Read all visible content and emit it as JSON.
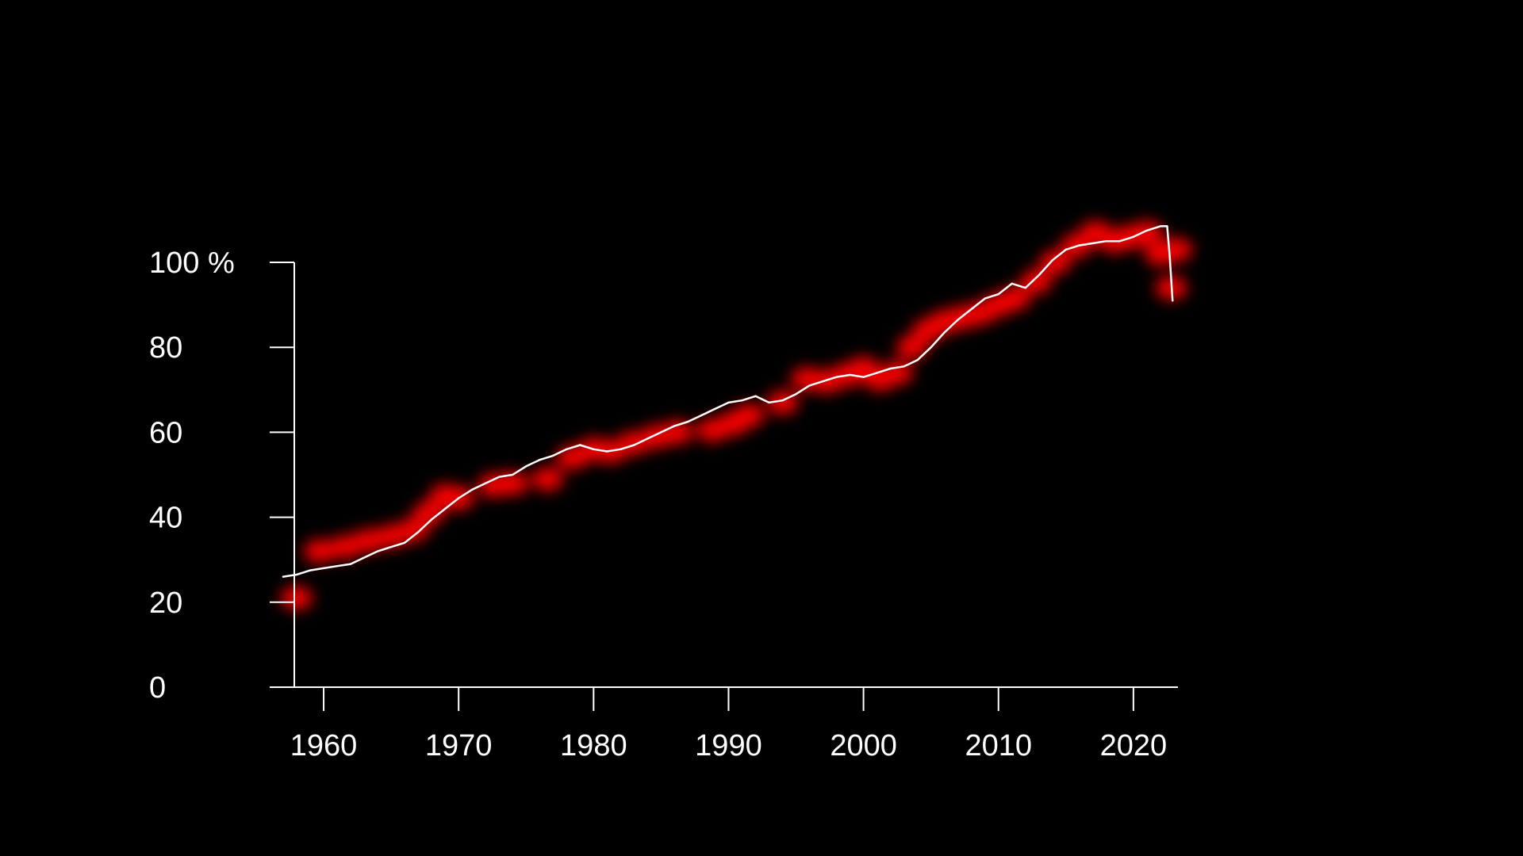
{
  "chart_data": {
    "type": "line",
    "title": "",
    "xlabel": "",
    "ylabel": "",
    "y_unit": "%",
    "xlim": [
      1956,
      2023.3
    ],
    "ylim": [
      0,
      100
    ],
    "x_ticks": [
      1960,
      1970,
      1980,
      1990,
      2000,
      2010,
      2020
    ],
    "y_ticks": [
      0,
      20,
      40,
      60,
      80,
      100
    ],
    "y_tick_labels": [
      "0",
      "20",
      "40",
      "60",
      "80",
      "100 %"
    ],
    "grid": false,
    "legend": "none",
    "colors": {
      "background": "#000000",
      "line": "#ffffff",
      "glow": "#ff0000",
      "axis": "#ffffff",
      "text": "#ffffff"
    },
    "series": [
      {
        "line": {
          "x": [
            1957.0,
            1958.0,
            1959.0,
            1960.0,
            1961.0,
            1962.0,
            1963.0,
            1964.0,
            1965.0,
            1966.0,
            1967.0,
            1968.0,
            1969.0,
            1970.0,
            1971.0,
            1972.0,
            1973.0,
            1974.0,
            1975.0,
            1976.0,
            1977.0,
            1978.0,
            1979.0,
            1980.0,
            1981.0,
            1982.0,
            1983.0,
            1984.0,
            1985.0,
            1986.0,
            1987.0,
            1988.0,
            1989.0,
            1990.0,
            1991.0,
            1992.0,
            1993.0,
            1994.0,
            1995.0,
            1996.0,
            1997.0,
            1998.0,
            1999.0,
            2000.0,
            2001.0,
            2002.0,
            2003.0,
            2004.0,
            2005.0,
            2006.0,
            2007.0,
            2008.0,
            2009.0,
            2010.0,
            2011.0,
            2012.0,
            2013.0,
            2014.0,
            2015.0,
            2016.0,
            2017.0,
            2018.0,
            2019.0,
            2020.0,
            2021.0,
            2022.0,
            2022.5,
            2022.7,
            2022.9
          ],
          "y": [
            26,
            26.5,
            27.5,
            28,
            28.5,
            29,
            30.5,
            32,
            33,
            34,
            36.5,
            39.5,
            42,
            44.5,
            46.5,
            48,
            49.5,
            50,
            52,
            53.5,
            54.5,
            56,
            57,
            56,
            55.5,
            56,
            57,
            58.5,
            60,
            61.5,
            62.5,
            64,
            65.5,
            67,
            67.5,
            68.5,
            67,
            67.5,
            69,
            71,
            72,
            73,
            73.5,
            73,
            74,
            75,
            75.5,
            77,
            80,
            83.5,
            86.5,
            89,
            91.5,
            92.5,
            95,
            94,
            97,
            100.5,
            103,
            104,
            104.5,
            105,
            105,
            106,
            107.5,
            108.5,
            108.5,
            101,
            91
          ]
        },
        "glow": {
          "x": [
            1958.0,
            1959.7,
            1961.6,
            1963.3,
            1965.0,
            1966.6,
            1967.8,
            1969.0,
            1970.0,
            1972.6,
            1974.0,
            1976.6,
            1978.4,
            1980.0,
            1981.3,
            1983.0,
            1984.7,
            1986.2,
            1988.8,
            1990.3,
            1991.5,
            1994.0,
            1995.8,
            1997.3,
            1998.8,
            2000.0,
            2001.2,
            2002.5,
            2003.6,
            2004.8,
            2006.0,
            2007.3,
            2008.6,
            2010.0,
            2011.2,
            2012.8,
            2014.2,
            2015.8,
            2017.2,
            2018.6,
            2019.8,
            2021.0,
            2022.0,
            2022.8,
            2023.2
          ],
          "y": [
            21,
            32,
            33,
            34.5,
            35.5,
            37,
            41,
            45,
            44.5,
            47.5,
            48,
            49,
            54,
            56,
            55.5,
            57.5,
            59,
            60,
            60.5,
            62,
            64,
            67,
            72.5,
            72,
            73.5,
            75,
            72.5,
            74,
            80,
            84,
            86,
            87,
            88,
            90,
            91.5,
            95.5,
            100,
            104,
            107,
            105,
            106,
            107,
            102,
            94,
            103
          ]
        }
      }
    ]
  }
}
